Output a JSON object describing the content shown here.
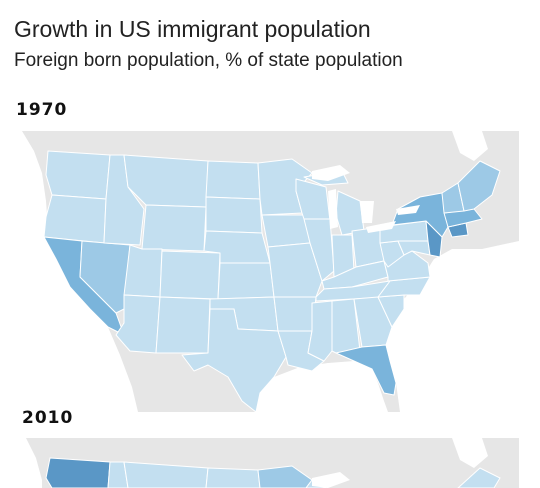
{
  "title": "Growth in US immigrant population",
  "subtitle": "Foreign born population, % of state population",
  "maps": [
    {
      "year": "1970"
    },
    {
      "year": "2010"
    }
  ],
  "colors": {
    "background_land": "#e6e6e6",
    "water": "#ffffff",
    "border": "#ffffff",
    "level_1": "#c3dff0",
    "level_2": "#9dc9e6",
    "level_3": "#7ab4db",
    "level_4": "#5a97c6"
  }
}
